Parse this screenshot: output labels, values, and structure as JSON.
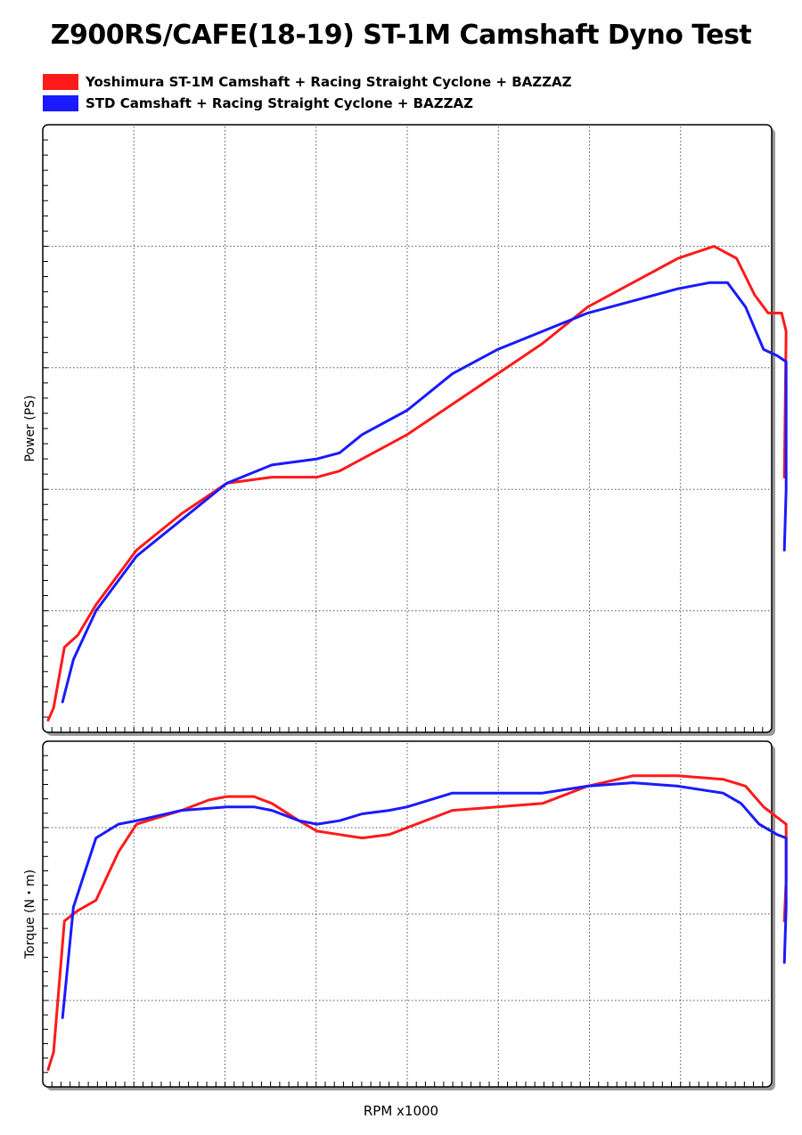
{
  "title": "Z900RS/CAFE(18-19) ST-1M Camshaft Dyno Test",
  "legend": [
    {
      "label": "Yoshimura ST-1M Camshaft + Racing Straight Cyclone + BAZZAZ",
      "color": "#ff1a1a"
    },
    {
      "label": "STD Camshaft + Racing Straight Cyclone + BAZZAZ",
      "color": "#1a1aff"
    }
  ],
  "xlabel": "RPM x1000",
  "chart_data": [
    {
      "type": "line",
      "ylabel": "Power (PS)",
      "grid": true,
      "xlim": [
        0,
        8.0
      ],
      "ylim": [
        0,
        100
      ],
      "series": [
        {
          "color": "#ff1a1a",
          "points": [
            [
              0.02,
              2
            ],
            [
              0.08,
              4
            ],
            [
              0.2,
              14
            ],
            [
              0.35,
              16
            ],
            [
              0.55,
              21
            ],
            [
              0.8,
              26
            ],
            [
              1.0,
              30
            ],
            [
              1.5,
              36
            ],
            [
              2.0,
              41
            ],
            [
              2.5,
              42
            ],
            [
              3.0,
              42
            ],
            [
              3.25,
              43
            ],
            [
              3.5,
              45
            ],
            [
              4.0,
              49
            ],
            [
              4.5,
              54
            ],
            [
              5.0,
              59
            ],
            [
              5.5,
              64
            ],
            [
              6.0,
              70
            ],
            [
              6.5,
              74
            ],
            [
              7.0,
              78
            ],
            [
              7.4,
              80
            ],
            [
              7.65,
              78
            ],
            [
              7.85,
              72
            ],
            [
              8.0,
              69
            ],
            [
              8.15,
              69
            ],
            [
              8.2,
              66
            ],
            [
              8.18,
              42
            ]
          ]
        },
        {
          "color": "#1a1aff",
          "points": [
            [
              0.18,
              5
            ],
            [
              0.3,
              12
            ],
            [
              0.55,
              20
            ],
            [
              1.0,
              29
            ],
            [
              1.5,
              35
            ],
            [
              2.0,
              41
            ],
            [
              2.5,
              44
            ],
            [
              3.0,
              45
            ],
            [
              3.25,
              46
            ],
            [
              3.5,
              49
            ],
            [
              4.0,
              53
            ],
            [
              4.25,
              56
            ],
            [
              4.5,
              59
            ],
            [
              5.0,
              63
            ],
            [
              5.5,
              66
            ],
            [
              6.0,
              69
            ],
            [
              6.5,
              71
            ],
            [
              7.0,
              73
            ],
            [
              7.35,
              74
            ],
            [
              7.55,
              74
            ],
            [
              7.75,
              70
            ],
            [
              7.95,
              63
            ],
            [
              8.1,
              62
            ],
            [
              8.2,
              61
            ],
            [
              8.2,
              40
            ],
            [
              8.18,
              30
            ]
          ]
        }
      ]
    },
    {
      "type": "line",
      "ylabel": "Torque (N・m)",
      "grid": true,
      "xlim": [
        0,
        8.0
      ],
      "ylim": [
        0,
        100
      ],
      "series": [
        {
          "color": "#ff1a1a",
          "points": [
            [
              0.02,
              5
            ],
            [
              0.08,
              10
            ],
            [
              0.2,
              48
            ],
            [
              0.35,
              51
            ],
            [
              0.55,
              54
            ],
            [
              0.8,
              68
            ],
            [
              1.0,
              76
            ],
            [
              1.5,
              80
            ],
            [
              1.8,
              83
            ],
            [
              2.0,
              84
            ],
            [
              2.3,
              84
            ],
            [
              2.5,
              82
            ],
            [
              2.8,
              77
            ],
            [
              3.0,
              74
            ],
            [
              3.25,
              73
            ],
            [
              3.5,
              72
            ],
            [
              3.8,
              73
            ],
            [
              4.0,
              75
            ],
            [
              4.5,
              80
            ],
            [
              5.0,
              81
            ],
            [
              5.5,
              82
            ],
            [
              6.0,
              87
            ],
            [
              6.5,
              90
            ],
            [
              7.0,
              90
            ],
            [
              7.5,
              89
            ],
            [
              7.75,
              87
            ],
            [
              7.95,
              81
            ],
            [
              8.1,
              78
            ],
            [
              8.2,
              76
            ],
            [
              8.2,
              60
            ],
            [
              8.18,
              48
            ]
          ]
        },
        {
          "color": "#1a1aff",
          "points": [
            [
              0.18,
              20
            ],
            [
              0.3,
              52
            ],
            [
              0.55,
              72
            ],
            [
              0.8,
              76
            ],
            [
              1.0,
              77
            ],
            [
              1.5,
              80
            ],
            [
              2.0,
              81
            ],
            [
              2.3,
              81
            ],
            [
              2.5,
              80
            ],
            [
              2.8,
              77
            ],
            [
              3.0,
              76
            ],
            [
              3.25,
              77
            ],
            [
              3.5,
              79
            ],
            [
              3.8,
              80
            ],
            [
              4.0,
              81
            ],
            [
              4.5,
              85
            ],
            [
              5.0,
              85
            ],
            [
              5.5,
              85
            ],
            [
              6.0,
              87
            ],
            [
              6.5,
              88
            ],
            [
              7.0,
              87
            ],
            [
              7.5,
              85
            ],
            [
              7.7,
              82
            ],
            [
              7.9,
              76
            ],
            [
              8.1,
              73
            ],
            [
              8.2,
              72
            ],
            [
              8.2,
              52
            ],
            [
              8.18,
              36
            ]
          ]
        }
      ]
    }
  ]
}
